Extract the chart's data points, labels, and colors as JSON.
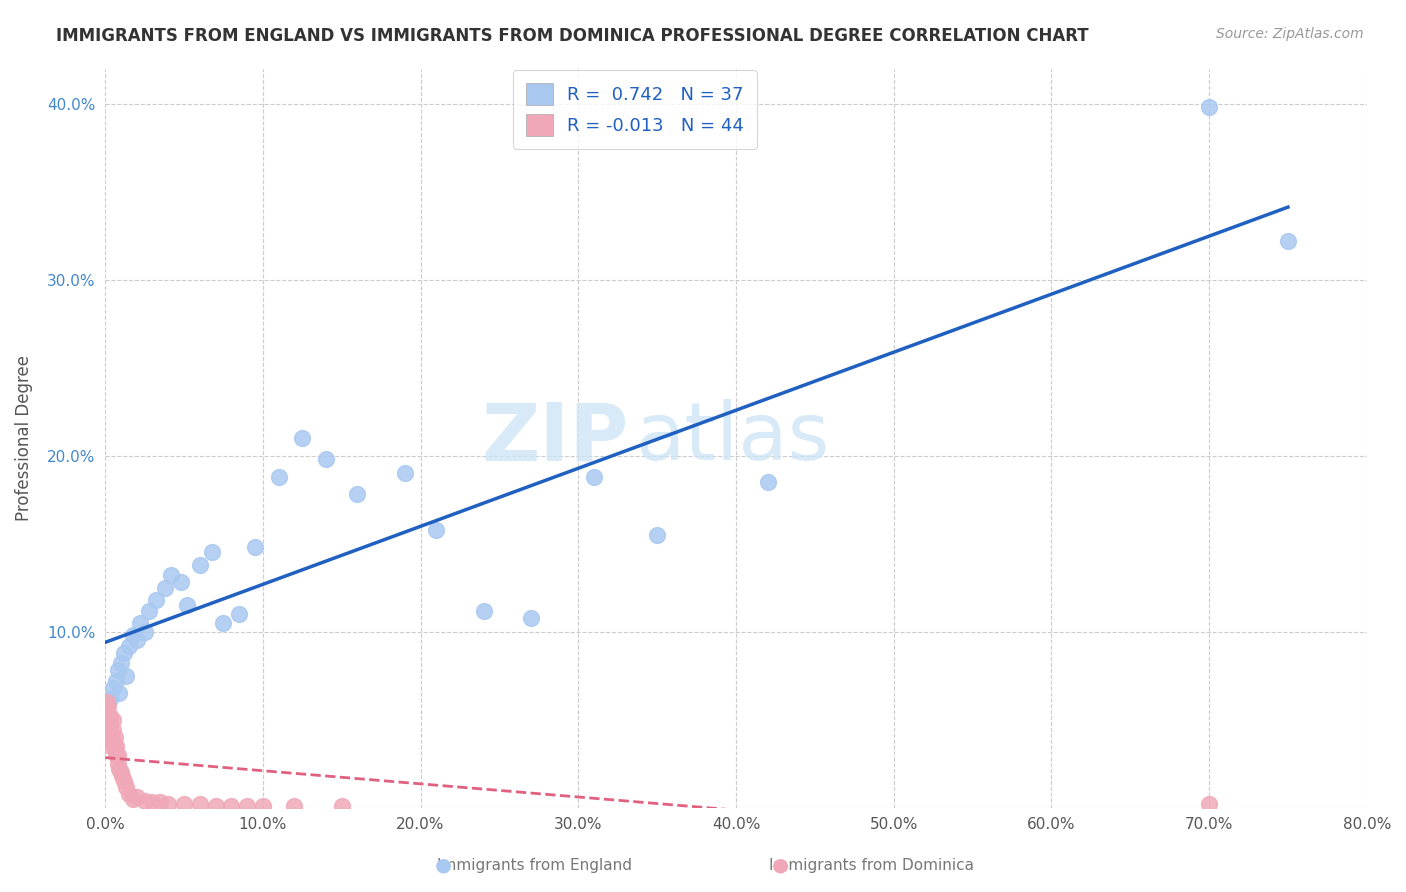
{
  "title": "IMMIGRANTS FROM ENGLAND VS IMMIGRANTS FROM DOMINICA PROFESSIONAL DEGREE CORRELATION CHART",
  "source": "Source: ZipAtlas.com",
  "ylabel": "Professional Degree",
  "xlim": [
    0,
    0.8
  ],
  "ylim": [
    0,
    0.42
  ],
  "xticks": [
    0.0,
    0.1,
    0.2,
    0.3,
    0.4,
    0.5,
    0.6,
    0.7,
    0.8
  ],
  "xticklabels": [
    "0.0%",
    "10.0%",
    "20.0%",
    "30.0%",
    "40.0%",
    "50.0%",
    "60.0%",
    "70.0%",
    "80.0%"
  ],
  "yticks": [
    0.0,
    0.1,
    0.2,
    0.3,
    0.4
  ],
  "yticklabels": [
    "",
    "10.0%",
    "20.0%",
    "30.0%",
    "40.0%"
  ],
  "england_R": 0.742,
  "england_N": 37,
  "dominica_R": -0.013,
  "dominica_N": 44,
  "england_color": "#a8c8f0",
  "dominica_color": "#f0a8b8",
  "england_line_color": "#2060c0",
  "dominica_line_color": "#e06080",
  "legend_color": "#2060c0",
  "watermark_zip": "ZIP",
  "watermark_atlas": "atlas",
  "england_x": [
    0.003,
    0.005,
    0.007,
    0.008,
    0.009,
    0.01,
    0.012,
    0.013,
    0.015,
    0.018,
    0.02,
    0.022,
    0.025,
    0.028,
    0.032,
    0.038,
    0.042,
    0.048,
    0.052,
    0.06,
    0.068,
    0.075,
    0.085,
    0.095,
    0.11,
    0.125,
    0.14,
    0.16,
    0.19,
    0.21,
    0.24,
    0.27,
    0.31,
    0.35,
    0.42,
    0.7,
    0.75
  ],
  "england_y": [
    0.062,
    0.068,
    0.072,
    0.078,
    0.065,
    0.082,
    0.088,
    0.075,
    0.092,
    0.098,
    0.095,
    0.105,
    0.1,
    0.112,
    0.118,
    0.125,
    0.132,
    0.128,
    0.115,
    0.138,
    0.145,
    0.105,
    0.11,
    0.148,
    0.188,
    0.21,
    0.198,
    0.178,
    0.19,
    0.158,
    0.112,
    0.108,
    0.188,
    0.155,
    0.185,
    0.398,
    0.322
  ],
  "dominica_x": [
    0.0005,
    0.001,
    0.001,
    0.001,
    0.001,
    0.002,
    0.002,
    0.002,
    0.002,
    0.003,
    0.003,
    0.003,
    0.004,
    0.004,
    0.005,
    0.005,
    0.005,
    0.006,
    0.006,
    0.007,
    0.007,
    0.008,
    0.008,
    0.009,
    0.01,
    0.011,
    0.012,
    0.013,
    0.015,
    0.018,
    0.02,
    0.025,
    0.03,
    0.035,
    0.04,
    0.05,
    0.06,
    0.07,
    0.08,
    0.09,
    0.1,
    0.12,
    0.15,
    0.7
  ],
  "dominica_y": [
    0.052,
    0.048,
    0.055,
    0.06,
    0.042,
    0.045,
    0.05,
    0.058,
    0.038,
    0.04,
    0.048,
    0.052,
    0.035,
    0.042,
    0.038,
    0.044,
    0.05,
    0.035,
    0.04,
    0.03,
    0.035,
    0.025,
    0.03,
    0.022,
    0.02,
    0.018,
    0.015,
    0.012,
    0.008,
    0.005,
    0.006,
    0.004,
    0.003,
    0.003,
    0.002,
    0.002,
    0.002,
    0.001,
    0.001,
    0.001,
    0.001,
    0.001,
    0.001,
    0.002
  ],
  "background_color": "#ffffff",
  "grid_color": "#cccccc"
}
